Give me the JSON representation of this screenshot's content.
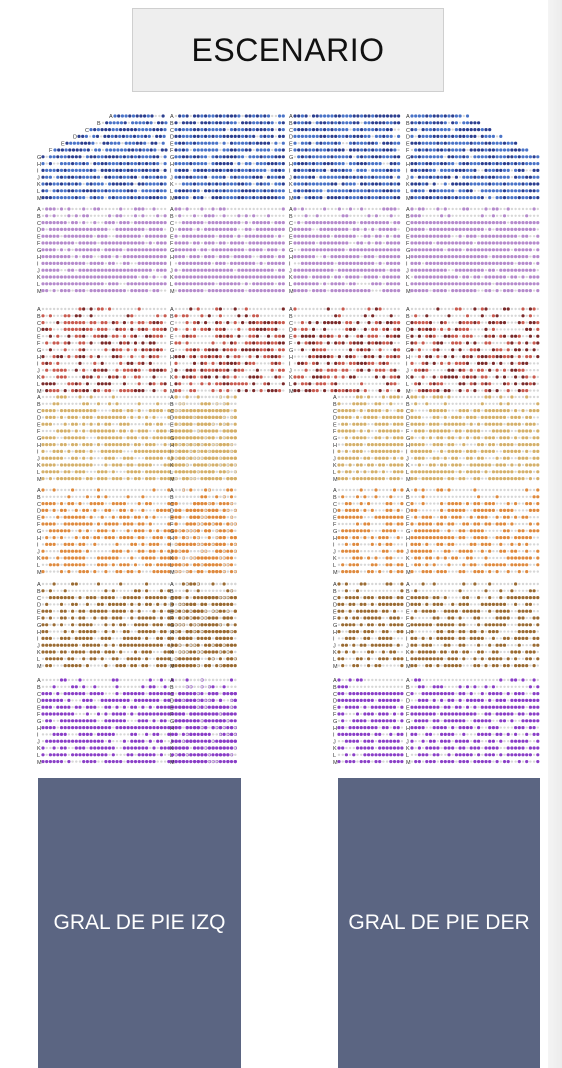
{
  "stage": {
    "label": "ESCENARIO"
  },
  "general_admission": {
    "left": "GRAL DE PIE IZQ",
    "right": "GRAL DE PIE DER"
  },
  "row_letters": [
    "A",
    "B",
    "C",
    "D",
    "E",
    "F",
    "G",
    "H",
    "I",
    "J",
    "K",
    "L",
    "M"
  ],
  "zone_colors": {
    "blue": "#4a73c7",
    "dark_navy": "#2c3f8f",
    "lavender": "#b58bcc",
    "brick": "#c85a4f",
    "maroon": "#7a2a2a",
    "gold": "#d4b06a",
    "orange": "#df8a3e",
    "brown": "#9a6b33",
    "purple": "#8a3fc7",
    "unavailable": "#d6d6d6"
  },
  "colors": {
    "general_admission_fill": "#5b6582",
    "stage_fill": "#eeeeee"
  }
}
